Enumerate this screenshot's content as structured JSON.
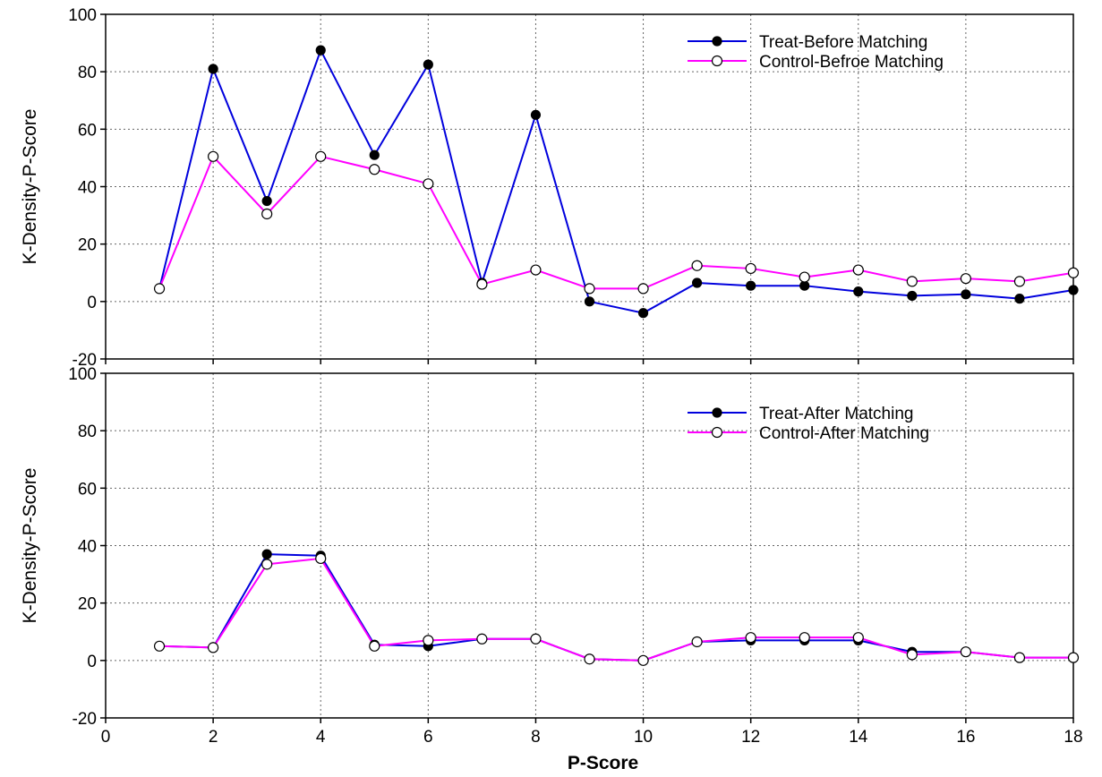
{
  "chart_data": [
    {
      "type": "line",
      "title": "",
      "xlabel": "",
      "ylabel": "K-Density-P-Score",
      "xlim": [
        0,
        18
      ],
      "ylim": [
        -20,
        100
      ],
      "xticks": [
        0,
        2,
        4,
        6,
        8,
        10,
        12,
        14,
        16,
        18
      ],
      "yticks": [
        -20,
        0,
        20,
        40,
        60,
        80,
        100
      ],
      "xtick_labels_shown": false,
      "grid": true,
      "legend_position": "top-right",
      "x": [
        1,
        2,
        3,
        4,
        5,
        6,
        7,
        8,
        9,
        10,
        11,
        12,
        13,
        14,
        15,
        16,
        17,
        18
      ],
      "series": [
        {
          "name": "Treat-Before Matching",
          "color": "#0000dd",
          "marker": "filled-circle",
          "values": [
            4.5,
            81,
            35,
            87.5,
            51,
            82.5,
            6.5,
            65,
            0,
            -4,
            6.5,
            5.5,
            5.5,
            3.5,
            2,
            2.5,
            1,
            4
          ]
        },
        {
          "name": "Control-Befroe Matching",
          "color": "#ff00ff",
          "marker": "open-circle",
          "values": [
            4.5,
            50.5,
            30.5,
            50.5,
            46,
            41,
            6,
            11,
            4.5,
            4.5,
            12.5,
            11.5,
            8.5,
            11,
            7,
            8,
            7,
            10
          ]
        }
      ]
    },
    {
      "type": "line",
      "title": "",
      "xlabel": "P-Score",
      "ylabel": "K-Density-P-Score",
      "xlim": [
        0,
        18
      ],
      "ylim": [
        -20,
        100
      ],
      "xticks": [
        0,
        2,
        4,
        6,
        8,
        10,
        12,
        14,
        16,
        18
      ],
      "yticks": [
        -20,
        0,
        20,
        40,
        60,
        80,
        100
      ],
      "xtick_labels_shown": true,
      "grid": true,
      "legend_position": "top-right",
      "x": [
        1,
        2,
        3,
        4,
        5,
        6,
        7,
        8,
        9,
        10,
        11,
        12,
        13,
        14,
        15,
        16,
        17,
        18
      ],
      "series": [
        {
          "name": "Treat-After Matching",
          "color": "#0000dd",
          "marker": "filled-circle",
          "values": [
            5,
            4.5,
            37,
            36.5,
            5.5,
            5,
            7.5,
            7.5,
            0.5,
            0,
            6.5,
            7,
            7,
            7,
            3,
            3,
            1,
            1
          ]
        },
        {
          "name": "Control-After Matching",
          "color": "#ff00ff",
          "marker": "open-circle",
          "values": [
            5,
            4.5,
            33.5,
            35.5,
            5,
            7,
            7.5,
            7.5,
            0.5,
            0,
            6.5,
            8,
            8,
            8,
            2,
            3,
            1,
            1
          ]
        }
      ]
    }
  ]
}
